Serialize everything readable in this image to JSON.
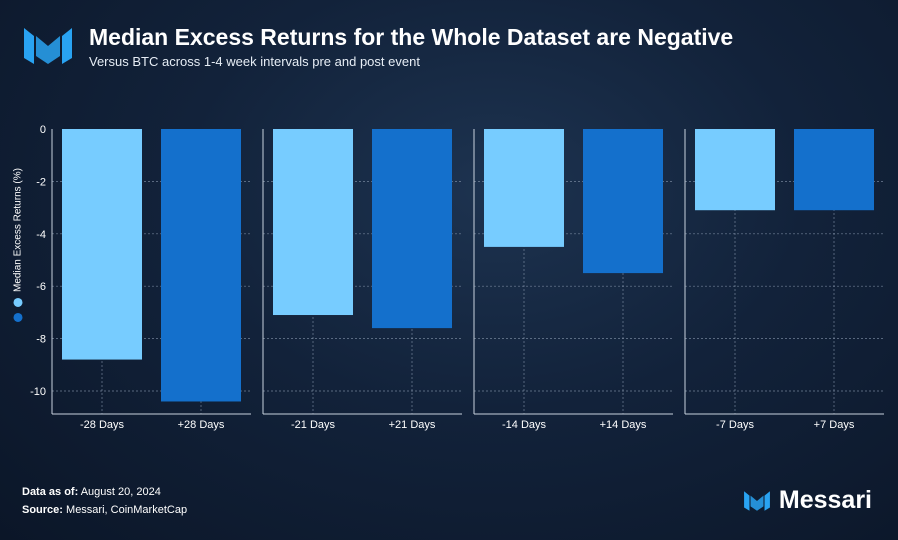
{
  "header": {
    "title": "Median Excess Returns for the Whole Dataset are Negative",
    "subtitle": "Versus BTC across 1-4 week intervals pre and post event"
  },
  "footer": {
    "data_as_of_label": "Data as of:",
    "data_as_of_value": "August 20, 2024",
    "source_label": "Source:",
    "source_value": "Messari, CoinMarketCap"
  },
  "brand": {
    "name": "Messari"
  },
  "colors": {
    "pre_event": "#77ccff",
    "post_event": "#1470cc",
    "grid": "#8a9ab0",
    "axis_line": "#c8d2de",
    "text": "#ffffff",
    "logo": "#29a3f2"
  },
  "chart_data": {
    "type": "bar",
    "title": "Median Excess Returns for the Whole Dataset are Negative",
    "subtitle": "Versus BTC across 1-4 week intervals pre and post event",
    "ylabel": "Median Excess Returns (%)",
    "ylim": [
      -10.5,
      0
    ],
    "yticks": [
      "0",
      "-2",
      "-4",
      "-6",
      "-8",
      "-10"
    ],
    "ytick_values": [
      0,
      -2,
      -4,
      -6,
      -8,
      -10
    ],
    "grid": true,
    "facets": [
      {
        "categories": [
          "-28 Days",
          "+28 Days"
        ],
        "values": [
          -8.8,
          -10.4
        ]
      },
      {
        "categories": [
          "-21 Days",
          "+21 Days"
        ],
        "values": [
          -7.1,
          -7.6
        ]
      },
      {
        "categories": [
          "-14 Days",
          "+14 Days"
        ],
        "values": [
          -4.5,
          -5.5
        ]
      },
      {
        "categories": [
          "-7 Days",
          "+7 Days"
        ],
        "values": [
          -3.1,
          -3.1
        ]
      }
    ]
  }
}
